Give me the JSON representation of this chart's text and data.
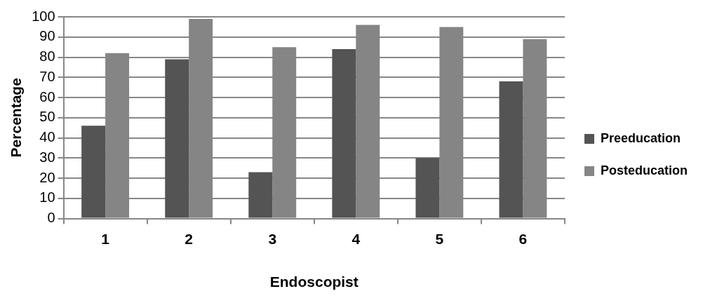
{
  "chart_data": {
    "type": "bar",
    "xlabel": "Endoscopist",
    "ylabel": "Percentage",
    "categories": [
      "1",
      "2",
      "3",
      "4",
      "5",
      "6"
    ],
    "series": [
      {
        "name": "Preeducation",
        "color": "#545454",
        "values": [
          46,
          79,
          23,
          84,
          30,
          68
        ]
      },
      {
        "name": "Posteducation",
        "color": "#858585",
        "values": [
          82,
          99,
          85,
          96,
          95,
          89
        ]
      }
    ],
    "ylim": [
      0,
      100
    ],
    "yticks": [
      0,
      10,
      20,
      30,
      40,
      50,
      60,
      70,
      80,
      90,
      100
    ],
    "grid": "y",
    "legend": "right"
  }
}
